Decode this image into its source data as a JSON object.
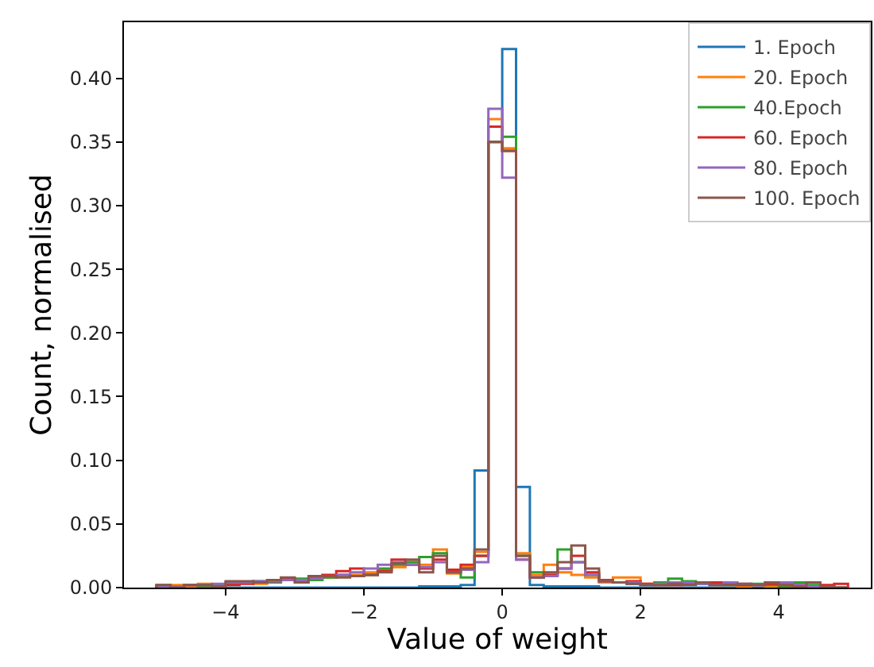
{
  "chart_data": {
    "type": "histogram",
    "xlabel": "Value of weight",
    "ylabel": "Count, normalised",
    "bins": [
      -5,
      -4.8,
      -4.6,
      -4.4,
      -4.2,
      -4,
      -3.8,
      -3.6,
      -3.4,
      -3.2,
      -3,
      -2.8,
      -2.6,
      -2.4,
      -2.2,
      -2,
      -1.8,
      -1.6,
      -1.4,
      -1.2,
      -1,
      -0.8,
      -0.6,
      -0.4,
      -0.2,
      0,
      0.2,
      0.4,
      0.6,
      0.8,
      1,
      1.2,
      1.4,
      1.6,
      1.8,
      2,
      2.2,
      2.4,
      2.6,
      2.8,
      3,
      3.2,
      3.4,
      3.6,
      3.8,
      4,
      4.2,
      4.4,
      4.6,
      4.8,
      5
    ],
    "series": [
      {
        "name": "1. Epoch",
        "color": "#1f77b4",
        "values": [
          0,
          0,
          0,
          0,
          0,
          0,
          0,
          0,
          0,
          0,
          0,
          0,
          0,
          0,
          0,
          0,
          0,
          0,
          0,
          0.001,
          0.001,
          0.001,
          0.002,
          0.092,
          0.35,
          0.423,
          0.079,
          0.002,
          0.001,
          0.001,
          0.001,
          0.001,
          0,
          0,
          0,
          0,
          0,
          0,
          0,
          0,
          0,
          0,
          0,
          0,
          0,
          0,
          0,
          0,
          0,
          0
        ]
      },
      {
        "name": "20. Epoch",
        "color": "#ff7f0e",
        "values": [
          0.001,
          0.002,
          0.001,
          0.003,
          0.002,
          0.003,
          0.004,
          0.003,
          0.005,
          0.006,
          0.005,
          0.007,
          0.008,
          0.009,
          0.01,
          0.012,
          0.014,
          0.016,
          0.02,
          0.018,
          0.03,
          0.011,
          0.016,
          0.028,
          0.368,
          0.345,
          0.027,
          0.01,
          0.018,
          0.012,
          0.01,
          0.008,
          0.004,
          0.008,
          0.008,
          0.003,
          0.002,
          0.002,
          0.003,
          0.004,
          0.002,
          0.002,
          0.001,
          0.002,
          0.001,
          0.002,
          0.001,
          0.001,
          0.001,
          0
        ]
      },
      {
        "name": "40.Epoch",
        "color": "#2ca02c",
        "values": [
          0.002,
          0.001,
          0.002,
          0.001,
          0.002,
          0.003,
          0.004,
          0.005,
          0.004,
          0.006,
          0.007,
          0.006,
          0.008,
          0.01,
          0.009,
          0.01,
          0.015,
          0.018,
          0.02,
          0.024,
          0.027,
          0.013,
          0.008,
          0.025,
          0.35,
          0.354,
          0.025,
          0.012,
          0.01,
          0.03,
          0.02,
          0.01,
          0.006,
          0.004,
          0.003,
          0.002,
          0.004,
          0.007,
          0.005,
          0.003,
          0.004,
          0.002,
          0.002,
          0.003,
          0.002,
          0.001,
          0.004,
          0.002,
          0.001,
          0
        ]
      },
      {
        "name": "60. Epoch",
        "color": "#d62728",
        "values": [
          0.001,
          0.001,
          0.002,
          0.002,
          0.001,
          0.002,
          0.003,
          0.004,
          0.005,
          0.007,
          0.006,
          0.008,
          0.01,
          0.013,
          0.015,
          0.01,
          0.013,
          0.022,
          0.018,
          0.015,
          0.022,
          0.014,
          0.018,
          0.025,
          0.362,
          0.343,
          0.022,
          0.008,
          0.01,
          0.015,
          0.025,
          0.012,
          0.006,
          0.004,
          0.005,
          0.003,
          0.002,
          0.002,
          0.003,
          0.004,
          0.004,
          0.003,
          0.002,
          0.002,
          0.003,
          0.002,
          0.002,
          0.001,
          0.002,
          0.003
        ]
      },
      {
        "name": "80. Epoch",
        "color": "#9467bd",
        "values": [
          0.001,
          0.001,
          0.002,
          0.002,
          0.003,
          0.004,
          0.004,
          0.005,
          0.005,
          0.006,
          0.006,
          0.007,
          0.009,
          0.01,
          0.012,
          0.015,
          0.018,
          0.02,
          0.018,
          0.016,
          0.02,
          0.012,
          0.014,
          0.02,
          0.376,
          0.322,
          0.022,
          0.008,
          0.009,
          0.015,
          0.02,
          0.01,
          0.005,
          0.004,
          0.004,
          0.002,
          0.003,
          0.004,
          0.004,
          0.003,
          0.002,
          0.004,
          0.003,
          0.002,
          0.004,
          0.004,
          0.002,
          0.001,
          0.001,
          0
        ]
      },
      {
        "name": "100. Epoch",
        "color": "#8c564b",
        "values": [
          0.002,
          0,
          0.002,
          0.002,
          0.001,
          0.005,
          0.005,
          0.004,
          0.006,
          0.008,
          0.004,
          0.009,
          0.009,
          0.008,
          0.009,
          0.01,
          0.012,
          0.019,
          0.022,
          0.012,
          0.025,
          0.012,
          0.015,
          0.03,
          0.35,
          0.343,
          0.025,
          0.008,
          0.012,
          0.02,
          0.033,
          0.015,
          0.005,
          0.004,
          0.003,
          0.002,
          0.002,
          0.003,
          0.002,
          0.004,
          0.002,
          0.002,
          0.003,
          0.002,
          0.004,
          0.002,
          0.001,
          0.004,
          0.001,
          0
        ]
      }
    ],
    "xlim": [
      -5.47,
      5.33
    ],
    "ylim": [
      0,
      0.444
    ],
    "xticks": [
      {
        "value": -4,
        "label": "−4"
      },
      {
        "value": -2,
        "label": "−2"
      },
      0,
      2,
      4
    ],
    "yticks": [
      {
        "value": 0,
        "label": "0.00"
      },
      {
        "value": 0.05,
        "label": "0.05"
      },
      {
        "value": 0.1,
        "label": "0.10"
      },
      {
        "value": 0.15,
        "label": "0.15"
      },
      {
        "value": 0.2,
        "label": "0.20"
      },
      {
        "value": 0.25,
        "label": "0.25"
      },
      {
        "value": 0.3,
        "label": "0.30"
      },
      {
        "value": 0.35,
        "label": "0.35"
      },
      {
        "value": 0.4,
        "label": "0.40"
      }
    ],
    "grid": false,
    "legend": "top right"
  }
}
